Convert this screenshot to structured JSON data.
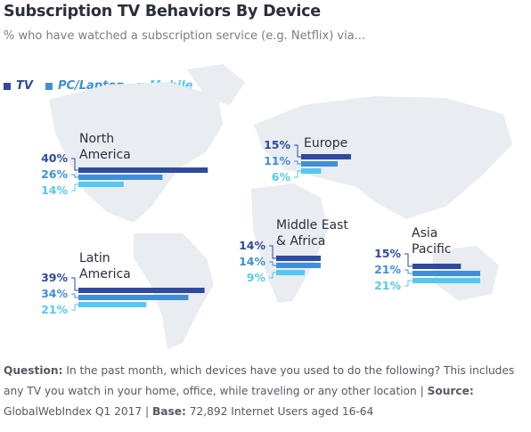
{
  "header": {
    "title": "Subscription TV Behaviors By Device",
    "subtitle": "% who have watched a subscription service (e.g. Netflix) via..."
  },
  "colors": {
    "tv": "#2f4a9e",
    "pc": "#3f8fd8",
    "mobile": "#54c8ee",
    "map": "#e9ecf1",
    "connector": "#8a8fa8"
  },
  "legend": [
    {
      "label": "TV",
      "color": "#2f4a9e"
    },
    {
      "label": "PC/Laptop",
      "color": "#3f8fd8"
    },
    {
      "label": "Mobile",
      "color": "#54c8ee"
    }
  ],
  "chart_data": {
    "type": "bar",
    "series_names": [
      "TV",
      "PC/Laptop",
      "Mobile"
    ],
    "groups": [
      {
        "region": [
          "North",
          "America"
        ],
        "values": [
          40,
          26,
          14
        ],
        "labels": [
          "40%",
          "26%",
          "14%"
        ]
      },
      {
        "region": [
          "Europe"
        ],
        "values": [
          15,
          11,
          6
        ],
        "labels": [
          "15%",
          "11%",
          "6%"
        ]
      },
      {
        "region": [
          "Latin",
          "America"
        ],
        "values": [
          39,
          34,
          21
        ],
        "labels": [
          "39%",
          "34%",
          "21%"
        ]
      },
      {
        "region": [
          "Middle East",
          "& Africa"
        ],
        "values": [
          14,
          14,
          9
        ],
        "labels": [
          "14%",
          "14%",
          "9%"
        ]
      },
      {
        "region": [
          "Asia",
          "Pacific"
        ],
        "values": [
          15,
          21,
          21
        ],
        "labels": [
          "15%",
          "21%",
          "21%"
        ]
      }
    ]
  },
  "footnote": {
    "question_label": "Question:",
    "question_text": " In the past month, which devices have you used to do the following? This includes any TV you watch in your home, office, while traveling or any other location | ",
    "source_label": "Source:",
    "source_text": " GlobalWebIndex Q1 2017 | ",
    "base_label": "Base:",
    "base_text": " 72,892 Internet Users aged 16-64"
  }
}
